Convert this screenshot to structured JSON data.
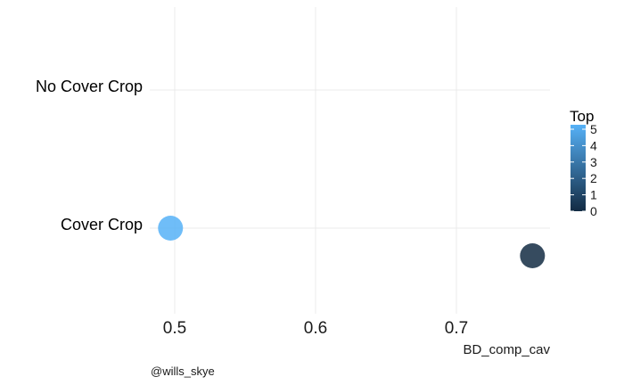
{
  "chart_data": {
    "type": "scatter",
    "xlabel": "BD_comp_cav",
    "ylabel": "",
    "x_ticks": [
      0.5,
      0.6,
      0.7
    ],
    "xlim": [
      0.485,
      0.725
    ],
    "categories": [
      "Cover Crop",
      "No Cover Crop"
    ],
    "points": [
      {
        "x": 0.497,
        "category": "Cover Crop",
        "offset": 0,
        "top": 5
      },
      {
        "x": 0.754,
        "category": "Cover Crop",
        "offset": -0.2,
        "top": 0
      }
    ],
    "legend": {
      "title": "Top",
      "ticks": [
        0,
        1,
        2,
        3,
        4,
        5
      ],
      "range": [
        0,
        5
      ],
      "color_low": "#132B43",
      "color_high": "#56B1F7",
      "placement": "right"
    },
    "grid": true,
    "caption": "@wills_skye"
  }
}
